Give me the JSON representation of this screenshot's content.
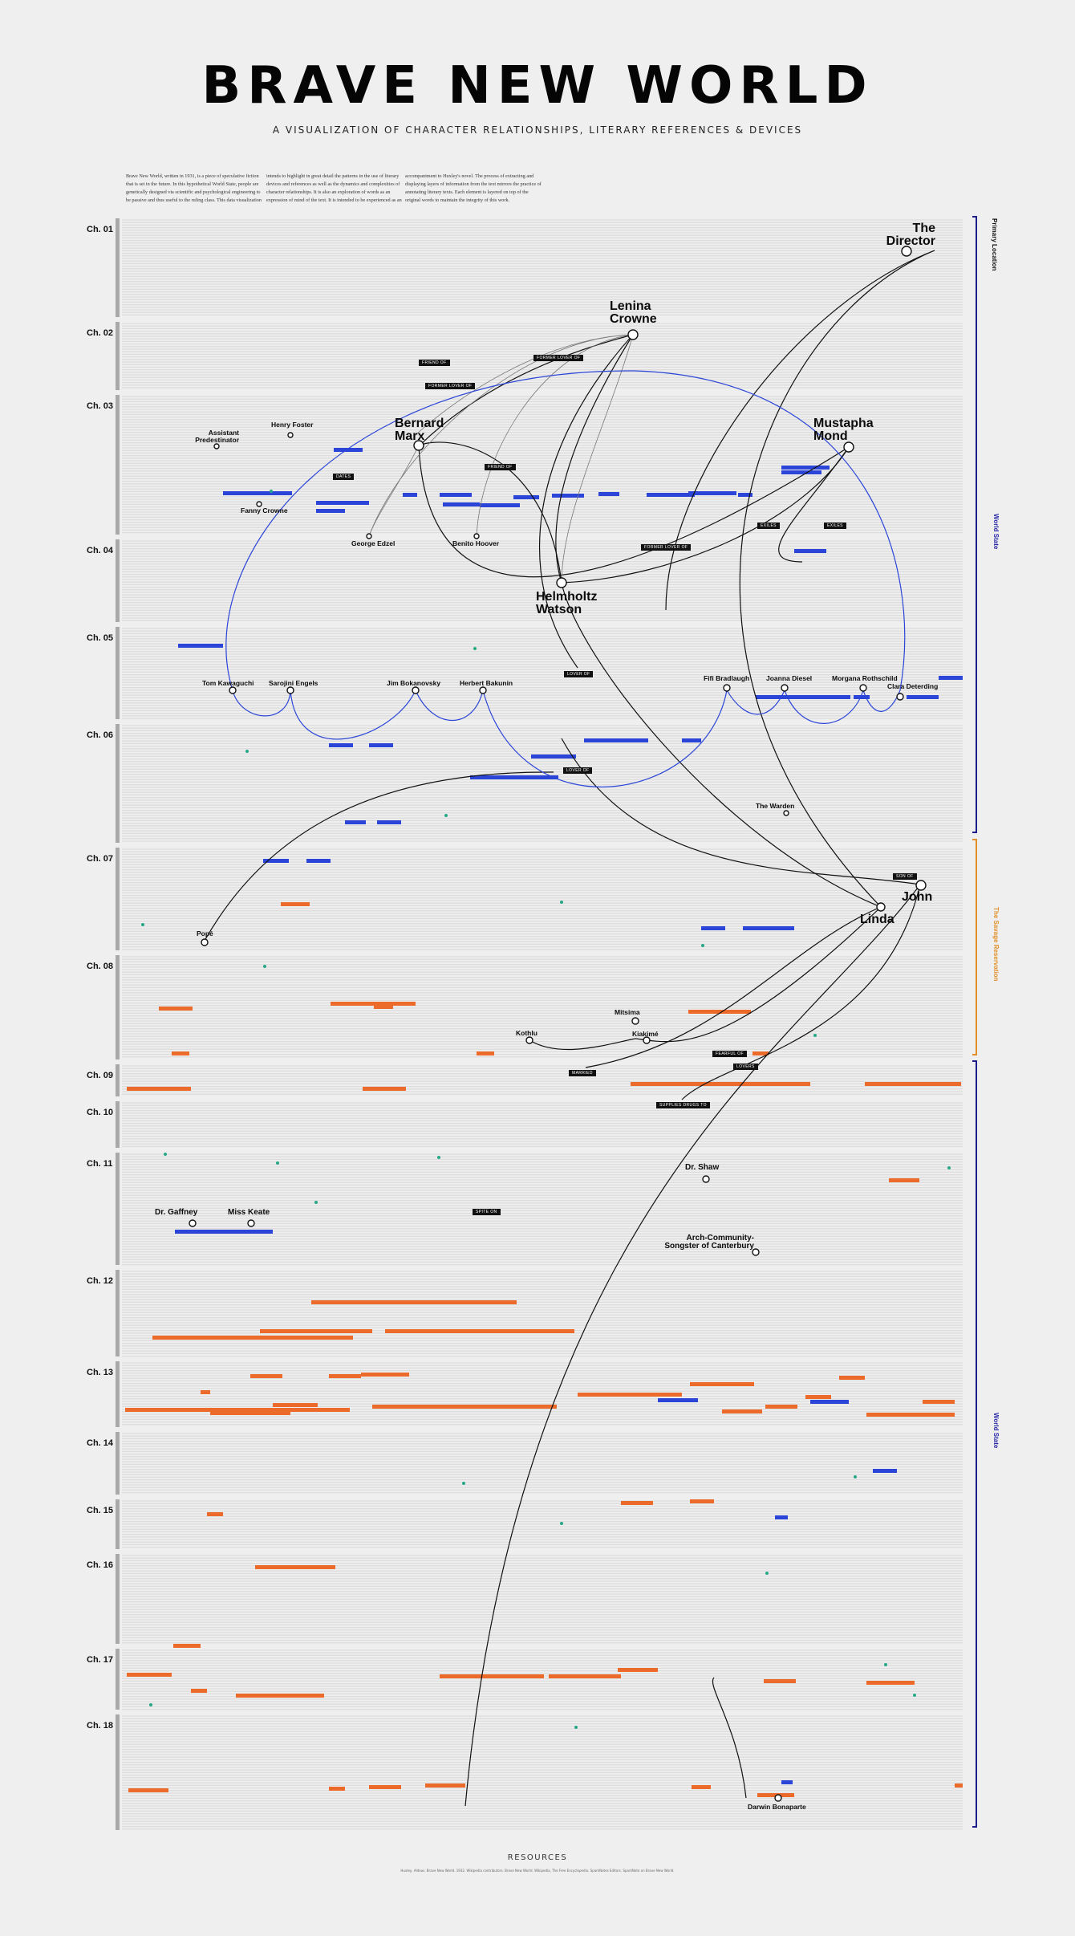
{
  "title": "BRAVE NEW WORLD",
  "subtitle": "A VISUALIZATION OF CHARACTER RELATIONSHIPS, LITERARY REFERENCES & DEVICES",
  "intro": [
    "Brave New World, written in 1931, is a piece of speculative fiction that is set in the future. In this hypothetical World State, people are genetically designed via scientific and psychological engineering to be passive and thus useful to the ruling class. This data visualization",
    "intends to highlight in great detail the patterns in the use of literary devices and references as well as the dynamics and complexities of character relationships. It is also an exploration of words as an expression of mind of the text. It is intended to be experienced as an",
    "accompaniment to Huxley's novel. The process of extracting and displaying layers of information from the text mirrors the practice of annotating literary texts. Each element is layered on top of the original words to maintain the integrity of this work."
  ],
  "chapters": [
    "Ch. 01",
    "Ch. 02",
    "Ch. 03",
    "Ch. 04",
    "Ch. 05",
    "Ch. 06",
    "Ch. 07",
    "Ch. 08",
    "Ch. 09",
    "Ch. 10",
    "Ch. 11",
    "Ch. 12",
    "Ch. 13",
    "Ch. 14",
    "Ch. 15",
    "Ch. 16",
    "Ch. 17",
    "Ch. 18"
  ],
  "characters": {
    "director": "The Director",
    "lenina": "Lenina Crowne",
    "bernard": "Bernard Marx",
    "mustapha": "Mustapha Mond",
    "helmholtz": "Helmholtz Watson",
    "henry": "Henry Foster",
    "assistant": "Assistant Predestinator",
    "fanny": "Fanny Crowne",
    "george": "George Edzel",
    "benito": "Benito Hoover",
    "tom": "Tom Kawaguchi",
    "sarojini": "Sarojini Engels",
    "jim": "Jim Bokanovsky",
    "herbert": "Herbert Bakunin",
    "fifi": "Fifi Bradlaugh",
    "joanna": "Joanna Diesel",
    "morgana": "Morgana Rothschild",
    "clara": "Clara Deterding",
    "warden": "The Warden",
    "john": "John",
    "linda": "Linda",
    "pope": "Popé",
    "mitsima": "Mitsima",
    "kothlu": "Kothlu",
    "kiakime": "Kiakimé",
    "shaw": "Dr. Shaw",
    "gaffney": "Dr. Gaffney",
    "keate": "Miss Keate",
    "arch": "Arch-Community-Songster of Canterbury",
    "darwin": "Darwin Bonaparte"
  },
  "tags": {
    "friend1": "FRIEND OF",
    "former1": "FORMER LOVER OF",
    "former2": "FORMER LOVER OF",
    "former3": "FORMER LOVER OF",
    "dates": "DATES",
    "friend2": "FRIEND OF",
    "exiles1": "EXILES",
    "exiles2": "EXILES",
    "lover": "LOVER OF",
    "son": "SON OF",
    "married": "MARRIED",
    "fearful": "FEARFUL OF",
    "lovers": "LOVERS",
    "supplies": "SUPPLIES DRUGS TO",
    "sprite": "SPITE ON",
    "lovedof": "LOVER OF"
  },
  "sides": {
    "primary": "Primary Location",
    "world1": "World State",
    "savage": "The Savage Reservation",
    "world2": "World State"
  },
  "resources": "RESOURCES",
  "refs": "Huxley, Aldous. Brave New World. 1932.   Wikipedia contributors. Brave New World. Wikipedia, The Free Encyclopedia.   SparkNotes Editors. SparkNote on Brave New World."
}
